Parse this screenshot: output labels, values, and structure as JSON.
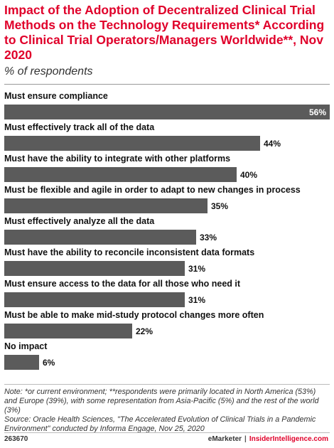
{
  "title": "Impact of the Adoption of Decentralized Clinical Trial Methods on the Technology Requirements* According to Clinical Trial Operators/Managers Worldwide**, Nov 2020",
  "subtitle": "% of respondents",
  "colors": {
    "title": "#e0002a",
    "bar": "#5b5b5b",
    "value_inside": "#ffffff",
    "value_outside": "#111111"
  },
  "chart_data": {
    "type": "bar",
    "orientation": "horizontal",
    "title": "Impact of the Adoption of Decentralized Clinical Trial Methods on the Technology Requirements* According to Clinical Trial Operators/Managers Worldwide**, Nov 2020",
    "subtitle": "% of respondents",
    "xlim": [
      0,
      56
    ],
    "categories": [
      "Must ensure compliance",
      "Must effectively track all of the data",
      "Must have the ability to integrate with other platforms",
      "Must be flexible and agile in order to adapt to new changes in process",
      "Must effectively analyze all the data",
      "Must have the ability to reconcile inconsistent data formats",
      "Must ensure access to the data for all those who need it",
      "Must be able to make mid-study protocol changes more often",
      "No impact"
    ],
    "values": [
      56,
      44,
      40,
      35,
      33,
      31,
      31,
      22,
      6
    ],
    "value_labels": [
      "56%",
      "44%",
      "40%",
      "35%",
      "33%",
      "31%",
      "31%",
      "22%",
      "6%"
    ]
  },
  "notes": {
    "note": "Note: *or current environment; **respondents were primarily located in North America (53%) and Europe (39%), with some representation from Asia-Pacific (5%) and the rest of the world (3%)",
    "source": "Source: Oracle Health Sciences, \"The Accelerated Evolution of Clinical Trials in a Pandemic Environment\" conducted by Informa Engage, Nov 25, 2020"
  },
  "footer": {
    "chart_id": "263670",
    "brand": "eMarketer",
    "separator": "|",
    "site": "InsiderIntelligence.com"
  }
}
